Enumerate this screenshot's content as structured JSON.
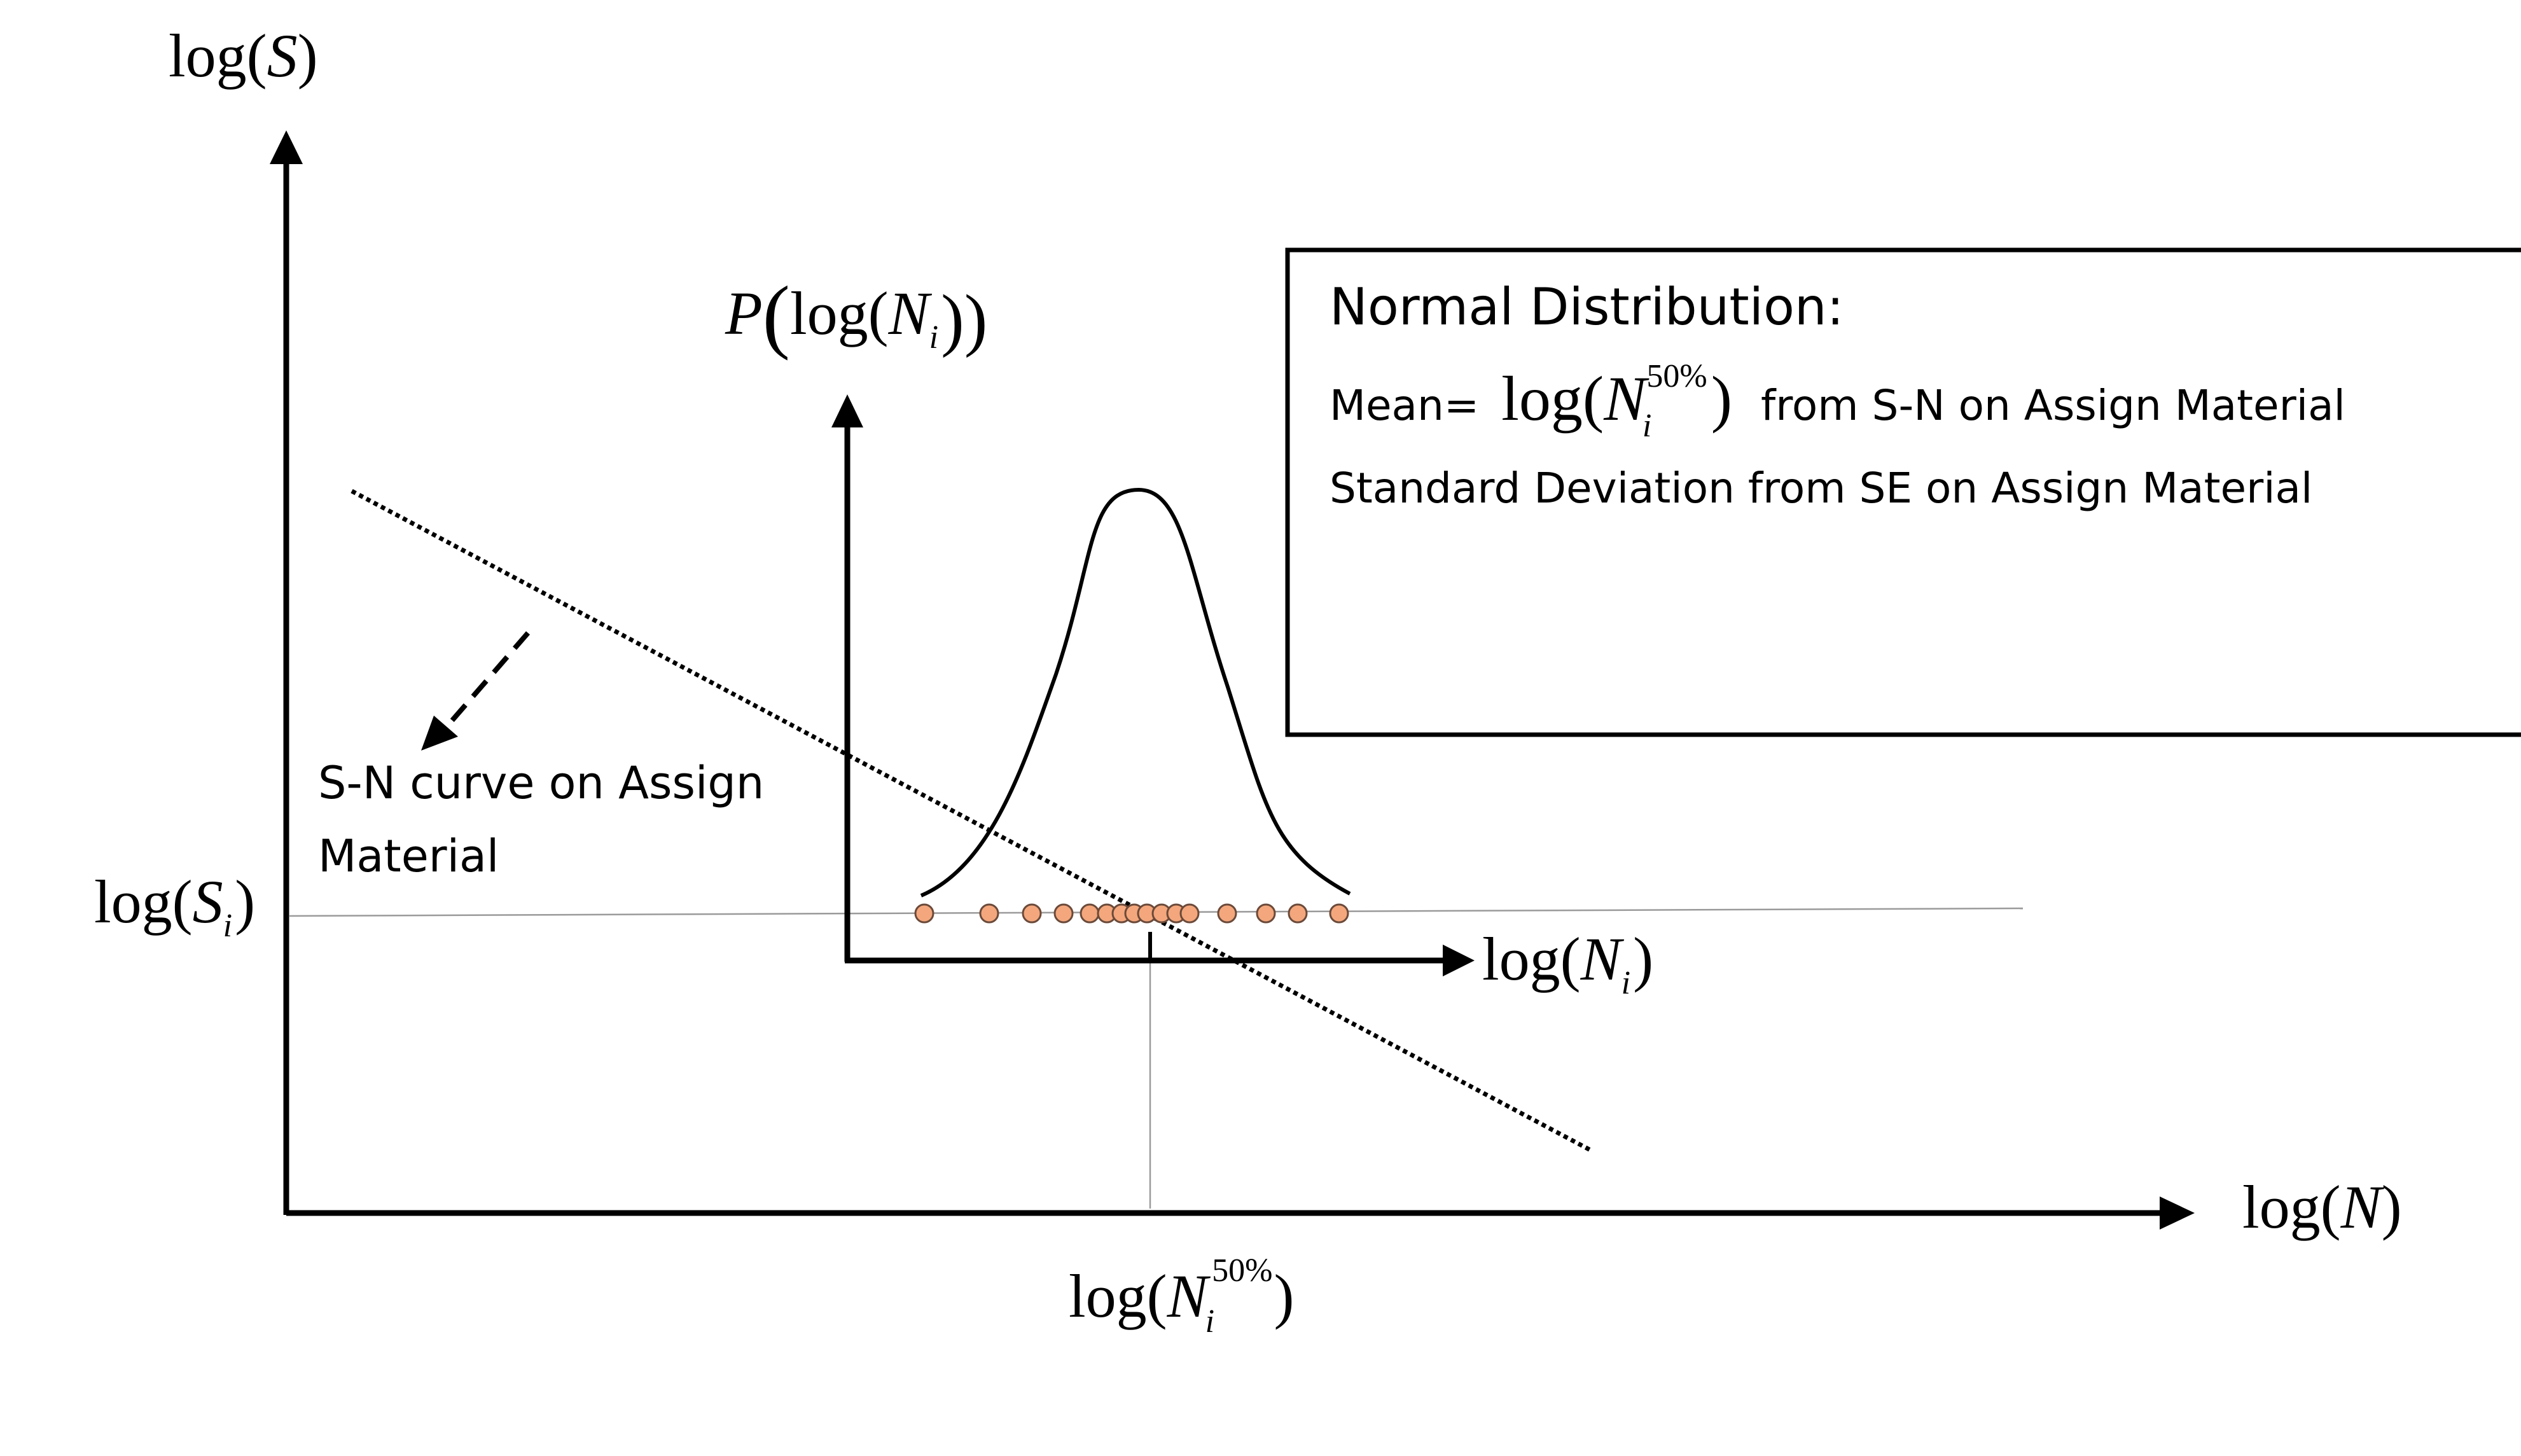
{
  "axes": {
    "y_label": {
      "fn": "log(",
      "var": "S",
      "close": ")"
    },
    "x_label": {
      "fn": "log(",
      "var": "N",
      "close": ")"
    },
    "y_tick": {
      "fn": "log(",
      "var": "S",
      "sub": "i",
      "close": ")"
    },
    "x_tick": {
      "fn": "log(",
      "var": "N",
      "sub": "i",
      "sup": "50%",
      "close": ")"
    }
  },
  "inset": {
    "y_label": {
      "var": "P",
      "open": "(",
      "fn": "log(",
      "var2": "N",
      "sub": "i",
      "close": "))"
    },
    "x_label": {
      "fn": "log(",
      "var": "N",
      "sub": "i",
      "close": ")"
    },
    "sample_point_count": 15,
    "sample_color": "#f4a77c",
    "sample_stroke": "#6b4a3a"
  },
  "sn_curve": {
    "label_line1": "S-N curve on Assign",
    "label_line2": "Material"
  },
  "info_box": {
    "title": "Normal Distribution:",
    "mean_prefix": "Mean=",
    "mean_math": {
      "fn": "log(",
      "var": "N",
      "sub": "i",
      "sup": "50%",
      "close": ")"
    },
    "mean_suffix": "from S-N on Assign Material",
    "std_line": "Standard Deviation from SE on Assign Material"
  }
}
